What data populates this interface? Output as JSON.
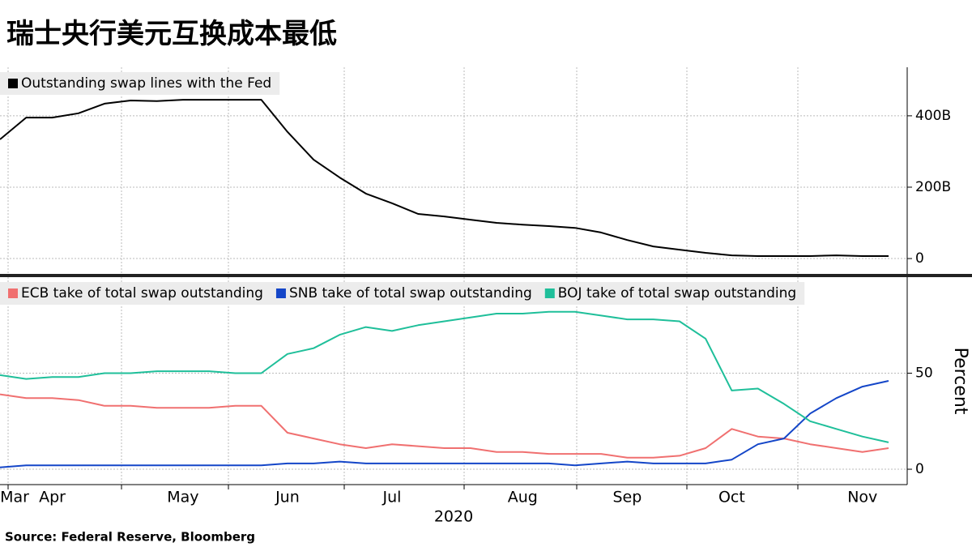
{
  "title": "瑞士央行美元互换成本最低",
  "source": "Source: Federal Reserve, Bloomberg",
  "chart_data": [
    {
      "type": "line",
      "legend": "upper left",
      "grid": true,
      "ylim": [
        -43,
        536
      ],
      "yticks": [
        0,
        {
          "value": 200,
          "label": "200B"
        },
        {
          "value": 400,
          "label": "400B"
        }
      ],
      "series": [
        {
          "name": "Outstanding swap lines with the Fed",
          "color": "#000000",
          "values": [
            334,
            395,
            395,
            407,
            434,
            443,
            441,
            445,
            445,
            445,
            445,
            355,
            277,
            227,
            182,
            155,
            125,
            118,
            109,
            100,
            95,
            91,
            86,
            73,
            52,
            34,
            25,
            16,
            9,
            7,
            7,
            7,
            9,
            7,
            7
          ]
        }
      ]
    },
    {
      "type": "line",
      "legend": "upper left",
      "grid": true,
      "y_label": "Percent",
      "x_label": "2020",
      "categories": [
        "Mar",
        null,
        "Apr",
        null,
        null,
        null,
        null,
        "May",
        null,
        null,
        null,
        "Jun",
        null,
        null,
        null,
        "Jul",
        null,
        null,
        null,
        null,
        "Aug",
        null,
        null,
        null,
        "Sep",
        null,
        null,
        null,
        "Oct",
        null,
        null,
        null,
        null,
        "Nov",
        null
      ],
      "ylim": [
        -8,
        100
      ],
      "yticks": [
        0,
        50
      ],
      "series": [
        {
          "name": "ECB take of total swap outstanding",
          "color": "#f07070",
          "values": [
            39,
            37,
            37,
            36,
            33,
            33,
            32,
            32,
            32,
            33,
            33,
            19,
            16,
            13,
            11,
            13,
            12,
            11,
            11,
            9,
            9,
            8,
            8,
            8,
            6,
            6,
            7,
            11,
            21,
            17,
            16,
            13,
            11,
            9,
            11
          ]
        },
        {
          "name": "SNB take of total swap outstanding",
          "color": "#1446c8",
          "values": [
            1,
            2,
            2,
            2,
            2,
            2,
            2,
            2,
            2,
            2,
            2,
            3,
            3,
            4,
            3,
            3,
            3,
            3,
            3,
            3,
            3,
            3,
            2,
            3,
            4,
            3,
            3,
            3,
            5,
            13,
            16,
            29,
            37,
            43,
            46
          ]
        },
        {
          "name": "BOJ take of total swap outstanding",
          "color": "#1fbf9a",
          "values": [
            49,
            47,
            48,
            48,
            50,
            50,
            51,
            51,
            51,
            50,
            50,
            60,
            63,
            70,
            74,
            72,
            75,
            77,
            79,
            81,
            81,
            82,
            82,
            80,
            78,
            78,
            77,
            68,
            41,
            42,
            34,
            25,
            21,
            17,
            14
          ]
        }
      ]
    }
  ]
}
